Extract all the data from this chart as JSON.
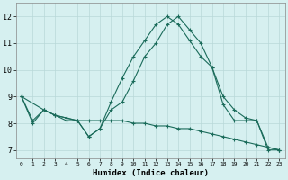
{
  "title": "",
  "xlabel": "Humidex (Indice chaleur)",
  "ylabel": "",
  "bg_color": "#d6f0f0",
  "grid_color": "#b8d8d8",
  "line_color": "#1a6b5a",
  "x_ticks": [
    0,
    1,
    2,
    3,
    4,
    5,
    6,
    7,
    8,
    9,
    10,
    11,
    12,
    13,
    14,
    15,
    16,
    17,
    18,
    19,
    20,
    21,
    22,
    23
  ],
  "y_ticks": [
    7,
    8,
    9,
    10,
    11,
    12
  ],
  "xlim": [
    -0.5,
    23.5
  ],
  "ylim": [
    6.7,
    12.5
  ],
  "line1_x": [
    0,
    1,
    2,
    3,
    4,
    5,
    6,
    7,
    8,
    9,
    10,
    11,
    12,
    13,
    14,
    15,
    16,
    17,
    18,
    19,
    20,
    21,
    22,
    23
  ],
  "line1_y": [
    9.0,
    8.0,
    8.5,
    8.3,
    8.1,
    8.1,
    7.5,
    7.8,
    8.8,
    9.7,
    10.5,
    11.1,
    11.7,
    12.0,
    11.7,
    11.1,
    10.5,
    10.1,
    8.7,
    8.1,
    8.1,
    8.1,
    7.0,
    7.0
  ],
  "line2_x": [
    0,
    2,
    3,
    4,
    5,
    6,
    7,
    8,
    9,
    10,
    11,
    12,
    13,
    14,
    15,
    16,
    17,
    18,
    19,
    20,
    21,
    22,
    23
  ],
  "line2_y": [
    9.0,
    8.5,
    8.3,
    8.2,
    8.1,
    7.5,
    7.8,
    8.5,
    8.8,
    9.6,
    10.5,
    11.0,
    11.7,
    12.0,
    11.5,
    11.0,
    10.1,
    9.0,
    8.5,
    8.2,
    8.1,
    7.1,
    7.0
  ],
  "line3_x": [
    0,
    1,
    2,
    3,
    4,
    5,
    6,
    7,
    8,
    9,
    10,
    11,
    12,
    13,
    14,
    15,
    16,
    17,
    18,
    19,
    20,
    21,
    22,
    23
  ],
  "line3_y": [
    9.0,
    8.1,
    8.5,
    8.3,
    8.2,
    8.1,
    8.1,
    8.1,
    8.1,
    8.1,
    8.0,
    8.0,
    7.9,
    7.9,
    7.8,
    7.8,
    7.7,
    7.6,
    7.5,
    7.4,
    7.3,
    7.2,
    7.1,
    7.0
  ]
}
